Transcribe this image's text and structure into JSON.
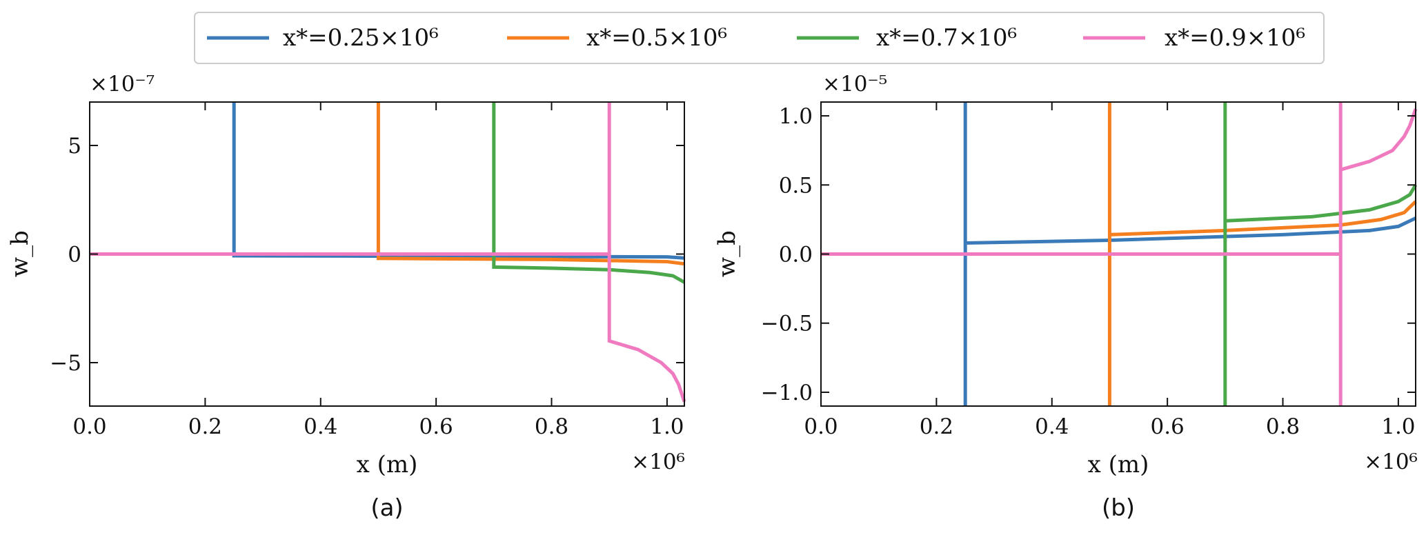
{
  "legend": {
    "entries": [
      {
        "label": "x*=0.25×10⁶",
        "color": "#3a7ab8"
      },
      {
        "label": "x*=0.5×10⁶",
        "color": "#f57f1f"
      },
      {
        "label": "x*=0.7×10⁶",
        "color": "#4aa84a"
      },
      {
        "label": "x*=0.9×10⁶",
        "color": "#f07ac0"
      }
    ]
  },
  "chart_data": [
    {
      "type": "line",
      "panel_label": "(a)",
      "xlabel": "x (m)",
      "ylabel": "w_b",
      "x_multiplier": "×10⁶",
      "y_multiplier": "×10⁻⁷",
      "xlim": [
        0.0,
        1.03
      ],
      "ylim": [
        -7.0,
        7.0
      ],
      "xticks": [
        0.0,
        0.2,
        0.4,
        0.6,
        0.8,
        1.0
      ],
      "xtick_labels": [
        "0.0",
        "0.2",
        "0.4",
        "0.6",
        "0.8",
        "1.0"
      ],
      "yticks": [
        -5,
        0,
        5
      ],
      "ytick_labels": [
        "−5",
        "0",
        "5"
      ],
      "series": [
        {
          "name": "x*=0.25×10⁶",
          "color": "#3a7ab8",
          "x": [
            0.0,
            0.25,
            0.25,
            0.25,
            1.0,
            1.03
          ],
          "y": [
            0.0,
            0.0,
            7.0,
            -0.08,
            -0.13,
            -0.18
          ]
        },
        {
          "name": "x*=0.5×10⁶",
          "color": "#f57f1f",
          "x": [
            0.0,
            0.5,
            0.5,
            0.5,
            0.8,
            1.0,
            1.03
          ],
          "y": [
            0.0,
            0.0,
            7.0,
            -0.2,
            -0.25,
            -0.35,
            -0.45
          ]
        },
        {
          "name": "x*=0.7×10⁶",
          "color": "#4aa84a",
          "x": [
            0.0,
            0.7,
            0.7,
            0.7,
            0.8,
            0.9,
            0.97,
            1.01,
            1.03
          ],
          "y": [
            0.0,
            0.0,
            7.0,
            -0.6,
            -0.65,
            -0.72,
            -0.85,
            -1.0,
            -1.3
          ]
        },
        {
          "name": "x*=0.9×10⁶",
          "color": "#f07ac0",
          "x": [
            0.0,
            0.9,
            0.9,
            0.9,
            0.95,
            0.99,
            1.01,
            1.02,
            1.03
          ],
          "y": [
            0.0,
            0.0,
            7.0,
            -4.0,
            -4.4,
            -5.0,
            -5.5,
            -6.0,
            -6.8
          ]
        }
      ]
    },
    {
      "type": "line",
      "panel_label": "(b)",
      "xlabel": "x (m)",
      "ylabel": "w_b",
      "x_multiplier": "×10⁶",
      "y_multiplier": "×10⁻⁵",
      "xlim": [
        0.0,
        1.03
      ],
      "ylim": [
        -1.1,
        1.1
      ],
      "xticks": [
        0.0,
        0.2,
        0.4,
        0.6,
        0.8,
        1.0
      ],
      "xtick_labels": [
        "0.0",
        "0.2",
        "0.4",
        "0.6",
        "0.8",
        "1.0"
      ],
      "yticks": [
        -1.0,
        -0.5,
        0.0,
        0.5,
        1.0
      ],
      "ytick_labels": [
        "−1.0",
        "−0.5",
        "0.0",
        "0.5",
        "1.0"
      ],
      "series": [
        {
          "name": "x*=0.25×10⁶",
          "color": "#3a7ab8",
          "x": [
            0.0,
            0.25,
            0.25,
            0.25,
            0.25,
            0.5,
            0.8,
            0.95,
            1.0,
            1.03
          ],
          "y": [
            0.0,
            0.0,
            -1.1,
            1.1,
            0.08,
            0.1,
            0.14,
            0.17,
            0.2,
            0.26
          ]
        },
        {
          "name": "x*=0.5×10⁶",
          "color": "#f57f1f",
          "x": [
            0.0,
            0.5,
            0.5,
            0.5,
            0.5,
            0.7,
            0.9,
            0.97,
            1.01,
            1.03
          ],
          "y": [
            0.0,
            0.0,
            -1.1,
            1.1,
            0.14,
            0.17,
            0.21,
            0.25,
            0.3,
            0.38
          ]
        },
        {
          "name": "x*=0.7×10⁶",
          "color": "#4aa84a",
          "x": [
            0.0,
            0.7,
            0.7,
            0.7,
            0.7,
            0.85,
            0.95,
            1.0,
            1.02,
            1.03
          ],
          "y": [
            0.0,
            0.0,
            -1.1,
            1.1,
            0.24,
            0.27,
            0.32,
            0.38,
            0.43,
            0.5
          ]
        },
        {
          "name": "x*=0.9×10⁶",
          "color": "#f07ac0",
          "x": [
            0.0,
            0.9,
            0.9,
            0.9,
            0.9,
            0.95,
            0.99,
            1.01,
            1.02,
            1.03
          ],
          "y": [
            0.0,
            0.0,
            -1.1,
            1.1,
            0.61,
            0.67,
            0.75,
            0.85,
            0.93,
            1.05
          ]
        }
      ]
    }
  ]
}
